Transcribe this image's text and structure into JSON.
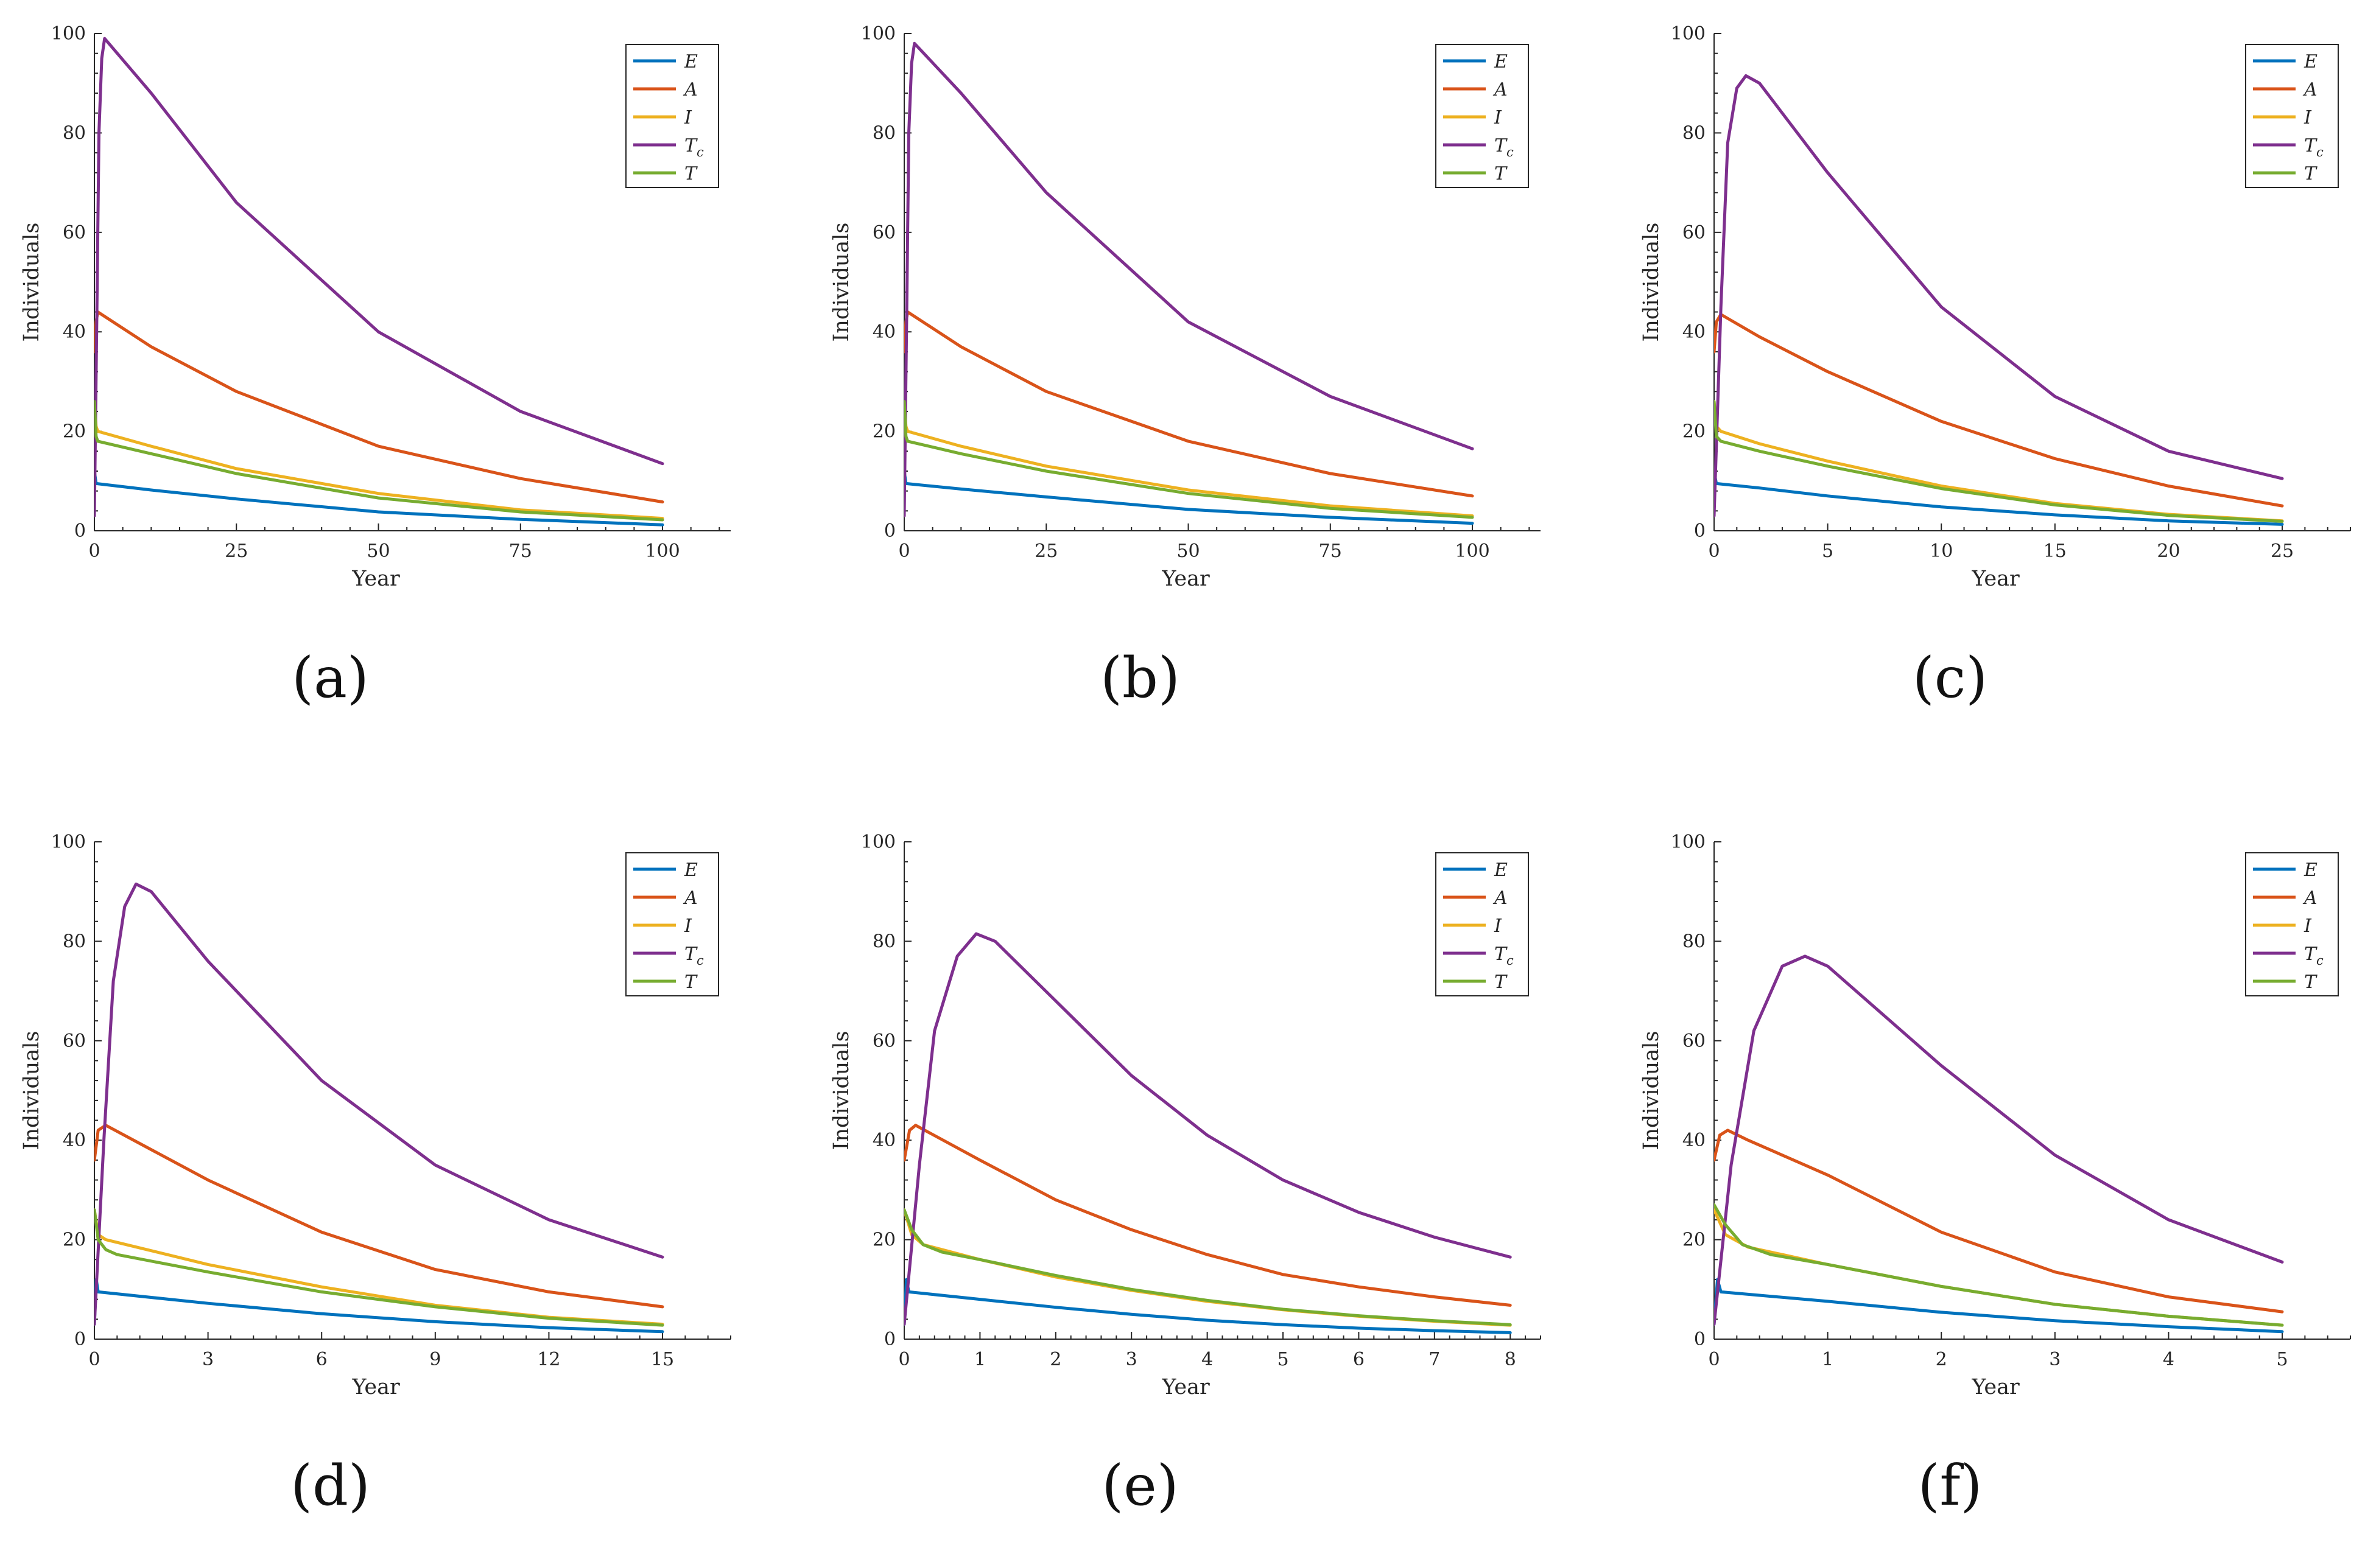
{
  "chart_data": [
    {
      "type": "line",
      "panel_label": "(a)",
      "xlabel": "Year",
      "ylabel": "Individuals",
      "xlim": [
        0,
        112
      ],
      "ylim": [
        0,
        100
      ],
      "xticks": [
        0,
        25,
        50,
        75,
        100
      ],
      "yticks": [
        0,
        20,
        40,
        60,
        80,
        100
      ],
      "legend_position": "top-right",
      "series": [
        {
          "name": "E",
          "sub": "",
          "color": "#0072BD",
          "x": [
            0,
            0.3,
            10,
            25,
            50,
            75,
            100
          ],
          "y": [
            12,
            9.5,
            8.2,
            6.4,
            3.8,
            2.3,
            1.2
          ]
        },
        {
          "name": "A",
          "sub": "",
          "color": "#D95319",
          "x": [
            0,
            0.3,
            0.6,
            10,
            25,
            50,
            75,
            100
          ],
          "y": [
            36,
            42,
            44,
            37,
            28,
            17,
            10.5,
            5.8
          ]
        },
        {
          "name": "I",
          "sub": "",
          "color": "#EDB120",
          "x": [
            0,
            0.3,
            0.6,
            10,
            25,
            50,
            75,
            100
          ],
          "y": [
            26,
            21,
            20,
            17,
            12.5,
            7.5,
            4.2,
            2.5
          ]
        },
        {
          "name": "T",
          "sub": "c",
          "color": "#7E2F8E",
          "x": [
            0,
            0.4,
            0.8,
            1.3,
            1.8,
            10,
            25,
            50,
            75,
            100
          ],
          "y": [
            3,
            40,
            80,
            95,
            99,
            88,
            66,
            40,
            24,
            13.5
          ]
        },
        {
          "name": "T",
          "sub": "",
          "color": "#77AC30",
          "x": [
            0,
            0.3,
            0.6,
            10,
            25,
            50,
            75,
            100
          ],
          "y": [
            26,
            19,
            18,
            15.5,
            11.5,
            6.6,
            3.8,
            2.2
          ]
        }
      ]
    },
    {
      "type": "line",
      "panel_label": "(b)",
      "xlabel": "Year",
      "ylabel": "Individuals",
      "xlim": [
        0,
        112
      ],
      "ylim": [
        0,
        100
      ],
      "xticks": [
        0,
        25,
        50,
        75,
        100
      ],
      "yticks": [
        0,
        20,
        40,
        60,
        80,
        100
      ],
      "legend_position": "top-right",
      "series": [
        {
          "name": "E",
          "sub": "",
          "color": "#0072BD",
          "x": [
            0,
            0.3,
            10,
            25,
            50,
            75,
            100
          ],
          "y": [
            12,
            9.5,
            8.4,
            6.8,
            4.3,
            2.7,
            1.5
          ]
        },
        {
          "name": "A",
          "sub": "",
          "color": "#D95319",
          "x": [
            0,
            0.3,
            0.6,
            10,
            25,
            50,
            75,
            100
          ],
          "y": [
            36,
            42,
            44,
            37,
            28,
            18,
            11.5,
            7
          ]
        },
        {
          "name": "I",
          "sub": "",
          "color": "#EDB120",
          "x": [
            0,
            0.3,
            0.6,
            10,
            25,
            50,
            75,
            100
          ],
          "y": [
            26,
            21,
            20,
            17,
            13,
            8.2,
            5,
            3
          ]
        },
        {
          "name": "T",
          "sub": "c",
          "color": "#7E2F8E",
          "x": [
            0,
            0.4,
            0.8,
            1.3,
            1.8,
            10,
            25,
            50,
            75,
            100
          ],
          "y": [
            3,
            40,
            80,
            94,
            98,
            88,
            68,
            42,
            27,
            16.5
          ]
        },
        {
          "name": "T",
          "sub": "",
          "color": "#77AC30",
          "x": [
            0,
            0.3,
            0.6,
            10,
            25,
            50,
            75,
            100
          ],
          "y": [
            26,
            19,
            18,
            15.5,
            12,
            7.5,
            4.5,
            2.7
          ]
        }
      ]
    },
    {
      "type": "line",
      "panel_label": "(c)",
      "xlabel": "Year",
      "ylabel": "Individuals",
      "xlim": [
        0,
        28
      ],
      "ylim": [
        0,
        100
      ],
      "xticks": [
        0,
        5,
        10,
        15,
        20,
        25
      ],
      "yticks": [
        0,
        20,
        40,
        60,
        80,
        100
      ],
      "legend_position": "top-right",
      "series": [
        {
          "name": "E",
          "sub": "",
          "color": "#0072BD",
          "x": [
            0,
            0.1,
            2,
            5,
            10,
            15,
            20,
            25
          ],
          "y": [
            12,
            9.5,
            8.6,
            7,
            4.8,
            3.2,
            2,
            1.3
          ]
        },
        {
          "name": "A",
          "sub": "",
          "color": "#D95319",
          "x": [
            0,
            0.1,
            0.3,
            2,
            5,
            10,
            15,
            20,
            25
          ],
          "y": [
            36,
            42,
            43.5,
            39,
            32,
            22,
            14.5,
            9,
            5
          ]
        },
        {
          "name": "I",
          "sub": "",
          "color": "#EDB120",
          "x": [
            0,
            0.1,
            0.3,
            2,
            5,
            10,
            15,
            20,
            25
          ],
          "y": [
            26,
            21,
            20,
            17.5,
            14,
            9,
            5.5,
            3.3,
            2
          ]
        },
        {
          "name": "T",
          "sub": "c",
          "color": "#7E2F8E",
          "x": [
            0,
            0.3,
            0.6,
            1,
            1.4,
            2,
            5,
            10,
            15,
            20,
            25
          ],
          "y": [
            3,
            45,
            78,
            89,
            91.5,
            90,
            72,
            45,
            27,
            16,
            10.5
          ]
        },
        {
          "name": "T",
          "sub": "",
          "color": "#77AC30",
          "x": [
            0,
            0.1,
            0.3,
            2,
            5,
            10,
            15,
            20,
            25
          ],
          "y": [
            26,
            19,
            18,
            16,
            13,
            8.5,
            5.2,
            3.1,
            1.9
          ]
        }
      ]
    },
    {
      "type": "line",
      "panel_label": "(d)",
      "xlabel": "Year",
      "ylabel": "Individuals",
      "xlim": [
        0,
        16.8
      ],
      "ylim": [
        0,
        100
      ],
      "xticks": [
        0,
        3,
        6,
        9,
        12,
        15
      ],
      "yticks": [
        0,
        20,
        40,
        60,
        80,
        100
      ],
      "legend_position": "top-right",
      "series": [
        {
          "name": "E",
          "sub": "",
          "color": "#0072BD",
          "x": [
            0,
            0.05,
            0.1,
            3,
            6,
            9,
            12,
            15
          ],
          "y": [
            3,
            12,
            9.5,
            7.2,
            5.1,
            3.5,
            2.3,
            1.5
          ]
        },
        {
          "name": "A",
          "sub": "",
          "color": "#D95319",
          "x": [
            0,
            0.1,
            0.3,
            3,
            6,
            9,
            12,
            15
          ],
          "y": [
            36,
            42,
            43,
            32,
            21.5,
            14,
            9.5,
            6.5
          ]
        },
        {
          "name": "I",
          "sub": "",
          "color": "#EDB120",
          "x": [
            0,
            0.1,
            0.3,
            3,
            6,
            9,
            12,
            15
          ],
          "y": [
            26,
            21,
            20,
            15,
            10.5,
            6.8,
            4.4,
            3
          ]
        },
        {
          "name": "T",
          "sub": "c",
          "color": "#7E2F8E",
          "x": [
            0,
            0.25,
            0.5,
            0.8,
            1.1,
            1.5,
            3,
            6,
            9,
            12,
            15
          ],
          "y": [
            3,
            40,
            72,
            87,
            91.5,
            90,
            76,
            52,
            35,
            24,
            16.5
          ]
        },
        {
          "name": "T",
          "sub": "",
          "color": "#77AC30",
          "x": [
            0,
            0.1,
            0.3,
            0.6,
            3,
            6,
            9,
            12,
            15
          ],
          "y": [
            26,
            20,
            18,
            17,
            13.5,
            9.5,
            6.5,
            4.2,
            2.8
          ]
        }
      ]
    },
    {
      "type": "line",
      "panel_label": "(e)",
      "xlabel": "Year",
      "ylabel": "Individuals",
      "xlim": [
        0,
        8.4
      ],
      "ylim": [
        0,
        100
      ],
      "xticks": [
        0,
        1,
        2,
        3,
        4,
        5,
        6,
        7,
        8
      ],
      "yticks": [
        0,
        20,
        40,
        60,
        80,
        100
      ],
      "legend_position": "top-right",
      "series": [
        {
          "name": "E",
          "sub": "",
          "color": "#0072BD",
          "x": [
            0,
            0.03,
            0.06,
            1,
            2,
            3,
            4,
            5,
            6,
            7,
            8
          ],
          "y": [
            3,
            12,
            9.5,
            8,
            6.4,
            5,
            3.8,
            2.9,
            2.2,
            1.7,
            1.3
          ]
        },
        {
          "name": "A",
          "sub": "",
          "color": "#D95319",
          "x": [
            0,
            0.07,
            0.15,
            1,
            2,
            3,
            4,
            5,
            6,
            7,
            8
          ],
          "y": [
            36,
            42,
            43,
            36,
            28,
            22,
            17,
            13,
            10.5,
            8.5,
            6.8
          ]
        },
        {
          "name": "I",
          "sub": "",
          "color": "#EDB120",
          "x": [
            0,
            0.1,
            0.25,
            1,
            2,
            3,
            4,
            5,
            6,
            7,
            8
          ],
          "y": [
            26,
            21,
            19,
            16,
            12.5,
            9.8,
            7.6,
            5.9,
            4.6,
            3.6,
            2.8
          ]
        },
        {
          "name": "T",
          "sub": "c",
          "color": "#7E2F8E",
          "x": [
            0,
            0.2,
            0.4,
            0.7,
            0.95,
            1.2,
            2,
            3,
            4,
            5,
            6,
            7,
            8
          ],
          "y": [
            3,
            35,
            62,
            77,
            81.5,
            80,
            68,
            53,
            41,
            32,
            25.5,
            20.5,
            16.5
          ]
        },
        {
          "name": "T",
          "sub": "",
          "color": "#77AC30",
          "x": [
            0,
            0.1,
            0.25,
            0.5,
            1,
            2,
            3,
            4,
            5,
            6,
            7,
            8
          ],
          "y": [
            26,
            22,
            19,
            17.5,
            16,
            12.8,
            10,
            7.8,
            6,
            4.7,
            3.7,
            2.9
          ]
        }
      ]
    },
    {
      "type": "line",
      "panel_label": "(f)",
      "xlabel": "Year",
      "ylabel": "Individuals",
      "xlim": [
        0,
        5.6
      ],
      "ylim": [
        0,
        100
      ],
      "xticks": [
        0,
        1,
        2,
        3,
        4,
        5
      ],
      "yticks": [
        0,
        20,
        40,
        60,
        80,
        100
      ],
      "legend_position": "top-right",
      "series": [
        {
          "name": "E",
          "sub": "",
          "color": "#0072BD",
          "x": [
            0,
            0.03,
            0.06,
            1,
            2,
            3,
            4,
            5
          ],
          "y": [
            3,
            12,
            9.5,
            7.6,
            5.4,
            3.7,
            2.5,
            1.5
          ]
        },
        {
          "name": "A",
          "sub": "",
          "color": "#D95319",
          "x": [
            0,
            0.05,
            0.12,
            0.3,
            1,
            2,
            3,
            4,
            5
          ],
          "y": [
            36,
            41,
            42,
            40,
            33,
            21.5,
            13.5,
            8.5,
            5.5
          ]
        },
        {
          "name": "I",
          "sub": "",
          "color": "#EDB120",
          "x": [
            0,
            0.1,
            0.3,
            0.6,
            1,
            2,
            3,
            4,
            5
          ],
          "y": [
            26,
            21,
            18.5,
            17,
            15,
            10.6,
            7,
            4.6,
            2.8
          ]
        },
        {
          "name": "T",
          "sub": "c",
          "color": "#7E2F8E",
          "x": [
            0,
            0.15,
            0.35,
            0.6,
            0.8,
            1,
            2,
            3,
            4,
            5
          ],
          "y": [
            3,
            35,
            62,
            75,
            77,
            75,
            55,
            37,
            24,
            15.5
          ]
        },
        {
          "name": "T",
          "sub": "",
          "color": "#77AC30",
          "x": [
            0,
            0.1,
            0.25,
            0.5,
            1,
            2,
            3,
            4,
            5
          ],
          "y": [
            27,
            23,
            19,
            17,
            15,
            10.6,
            7,
            4.6,
            2.8
          ]
        }
      ]
    }
  ]
}
